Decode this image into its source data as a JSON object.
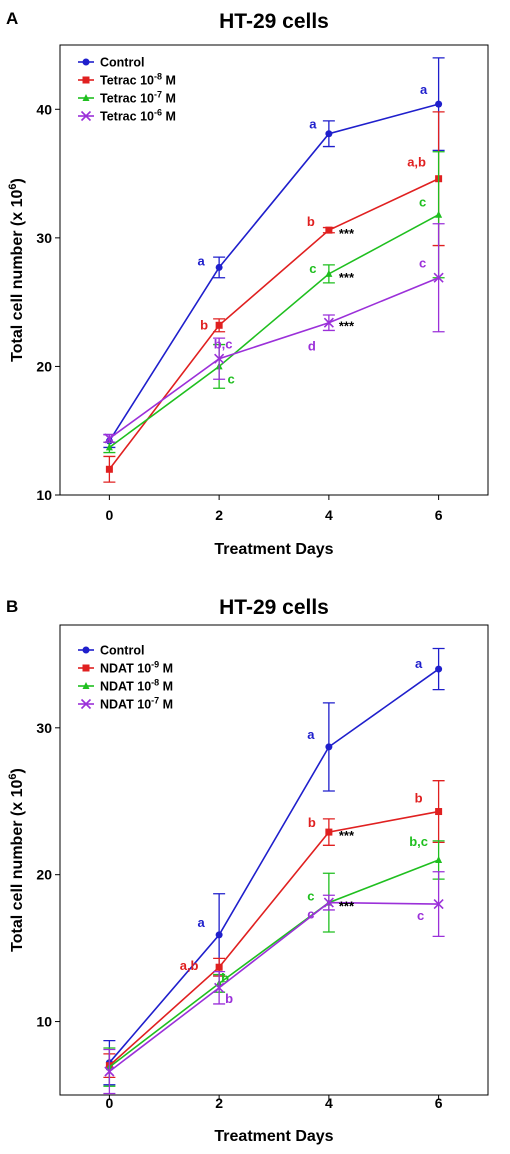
{
  "chart_data": [
    {
      "panel": "A",
      "type": "line",
      "title": "HT-29 cells",
      "xlabel": "Treatment Days",
      "ylabel": "Total cell number (x 10",
      "ylabel_sup": "6",
      "ylabel_end": ")",
      "xlim": [
        -0.9,
        6.9
      ],
      "ylim": [
        10,
        45
      ],
      "xticks": [
        0,
        2,
        4,
        6
      ],
      "yticks": [
        10,
        20,
        30,
        40
      ],
      "x": [
        0,
        2,
        4,
        6
      ],
      "legend": "top-left",
      "series": [
        {
          "name": "Control",
          "n1": "Control",
          "sup": "",
          "n2": "",
          "color": "#1f1fcc",
          "marker": "circle",
          "values": [
            14.2,
            27.7,
            38.1,
            40.4
          ],
          "err": [
            0.5,
            0.8,
            1.0,
            3.6
          ],
          "letters": [
            "",
            "a",
            "a",
            "a"
          ],
          "stars": [
            "",
            "",
            "",
            ""
          ]
        },
        {
          "name": "Tetrac 10-8 M",
          "n1": "Tetrac 10",
          "sup": "-8",
          "n2": " M",
          "color": "#e02020",
          "marker": "square",
          "values": [
            12.0,
            23.2,
            30.6,
            34.6
          ],
          "err": [
            1.0,
            0.5,
            0.2,
            5.2
          ],
          "letters": [
            "",
            "b",
            "b",
            "a,b"
          ],
          "stars": [
            "",
            "",
            "***",
            ""
          ]
        },
        {
          "name": "Tetrac 10-7 M",
          "n1": "Tetrac 10",
          "sup": "-7",
          "n2": " M",
          "color": "#1fbf1f",
          "marker": "triangle",
          "values": [
            13.7,
            20.0,
            27.2,
            31.8
          ],
          "err": [
            0.4,
            1.7,
            0.7,
            4.9
          ],
          "letters": [
            "",
            "c",
            "c",
            "c"
          ],
          "stars": [
            "",
            "",
            "***",
            ""
          ]
        },
        {
          "name": "Tetrac 10-6 M",
          "n1": "Tetrac 10",
          "sup": "-6",
          "n2": " M",
          "color": "#9b30d9",
          "marker": "x",
          "values": [
            14.4,
            20.6,
            23.4,
            26.9
          ],
          "err": [
            0.3,
            1.6,
            0.6,
            4.2
          ],
          "letters": [
            "",
            "b,c",
            "d",
            "c"
          ],
          "stars": [
            "",
            "",
            "***",
            ""
          ]
        }
      ]
    },
    {
      "panel": "B",
      "type": "line",
      "title": "HT-29 cells",
      "xlabel": "Treatment Days",
      "ylabel": "Total cell number (x 10",
      "ylabel_sup": "6",
      "ylabel_end": ")",
      "xlim": [
        -0.9,
        6.9
      ],
      "ylim": [
        5,
        37
      ],
      "xticks": [
        0,
        2,
        4,
        6
      ],
      "yticks": [
        10,
        20,
        30
      ],
      "x": [
        0,
        2,
        4,
        6
      ],
      "legend": "top-left",
      "series": [
        {
          "name": "Control",
          "n1": "Control",
          "sup": "",
          "n2": "",
          "color": "#1f1fcc",
          "marker": "circle",
          "values": [
            7.2,
            15.9,
            28.7,
            34.0
          ],
          "err": [
            1.5,
            2.8,
            3.0,
            1.4
          ],
          "letters": [
            "",
            "a",
            "a",
            "a"
          ],
          "stars": [
            "",
            "",
            "",
            ""
          ]
        },
        {
          "name": "NDAT 10-9 M",
          "n1": "NDAT 10",
          "sup": "-9",
          "n2": " M",
          "color": "#e02020",
          "marker": "square",
          "values": [
            7.0,
            13.7,
            22.9,
            24.3
          ],
          "err": [
            0.8,
            0.6,
            0.9,
            2.1
          ],
          "letters": [
            "",
            "a,b",
            "b",
            "b"
          ],
          "stars": [
            "",
            "",
            "***",
            ""
          ]
        },
        {
          "name": "NDAT 10-8 M",
          "n1": "NDAT 10",
          "sup": "-8",
          "n2": " M",
          "color": "#1fbf1f",
          "marker": "triangle",
          "values": [
            6.9,
            12.6,
            18.1,
            21.0
          ],
          "err": [
            1.3,
            0.6,
            2.0,
            1.3
          ],
          "letters": [
            "",
            "b",
            "c",
            "b,c"
          ],
          "stars": [
            "",
            "",
            "***",
            ""
          ]
        },
        {
          "name": "NDAT 10-7 M",
          "n1": "NDAT 10",
          "sup": "-7",
          "n2": " M",
          "color": "#9b30d9",
          "marker": "x",
          "values": [
            6.6,
            12.3,
            18.1,
            18.0
          ],
          "err": [
            1.5,
            1.1,
            0.5,
            2.2
          ],
          "letters": [
            "",
            "b",
            "c",
            "c"
          ],
          "stars": [
            "",
            "",
            "***",
            ""
          ]
        }
      ]
    }
  ]
}
